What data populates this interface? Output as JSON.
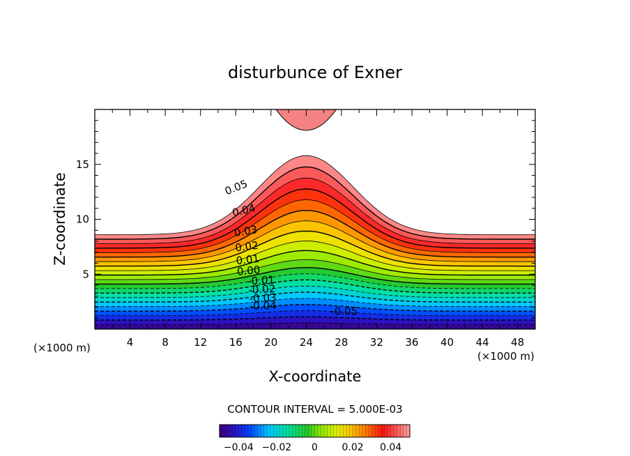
{
  "chart_data": {
    "type": "contour",
    "title": "disturbunce of Exner",
    "xlabel": "X-coordinate",
    "ylabel": "Z-coordinate",
    "x_unit": "(×1000 m)",
    "x_unit_right": "(×1000 m)",
    "xlim": [
      0,
      50
    ],
    "ylim": [
      0,
      20
    ],
    "xticks": [
      "4",
      "8",
      "12",
      "16",
      "20",
      "24",
      "28",
      "32",
      "36",
      "40",
      "44",
      "48"
    ],
    "yticks": [
      "5",
      "10",
      "15"
    ],
    "contour_interval_text": "CONTOUR INTERVAL = 5.000E-03",
    "contour_labels": [
      {
        "text": "0.05",
        "x": 16.2,
        "y": 12.6,
        "angle": -22
      },
      {
        "text": "0.04",
        "x": 17.0,
        "y": 10.5,
        "angle": -13
      },
      {
        "text": "0.03",
        "x": 17.2,
        "y": 8.6,
        "angle": -9
      },
      {
        "text": "0.02",
        "x": 17.3,
        "y": 7.2,
        "angle": -7
      },
      {
        "text": "0.01",
        "x": 17.4,
        "y": 6.0,
        "angle": -6
      },
      {
        "text": "0.00",
        "x": 17.5,
        "y": 5.0,
        "angle": -5
      },
      {
        "text": "-0.01",
        "x": 18.9,
        "y": 4.1,
        "angle": -3
      },
      {
        "text": "-0.02",
        "x": 19.0,
        "y": 3.3,
        "angle": -3
      },
      {
        "text": "-0.03",
        "x": 19.1,
        "y": 2.5,
        "angle": -2
      },
      {
        "text": "-0.04",
        "x": 19.1,
        "y": 1.8,
        "angle": -1
      },
      {
        "text": "-0.05",
        "x": 28.3,
        "y": 1.3,
        "angle": 0
      }
    ],
    "colorbar": {
      "range": [
        -0.05,
        0.05
      ],
      "tick_values": [
        -0.04,
        -0.02,
        0,
        0.02,
        0.04
      ],
      "tick_labels": [
        "−0.04",
        "−0.02",
        "0",
        "0.02",
        "0.04"
      ]
    },
    "field": {
      "hill_center_x": 24,
      "hill_width_x": 7.5,
      "level_zero_height": 4.1,
      "level_bump": 1.5,
      "top_level_height": 8.6,
      "top_level_bump": 7.2,
      "upper_feature_min_height": 18.1,
      "upper_feature_x_range": [
        20,
        28
      ],
      "min_value": -0.05,
      "max_value": 0.055
    }
  }
}
